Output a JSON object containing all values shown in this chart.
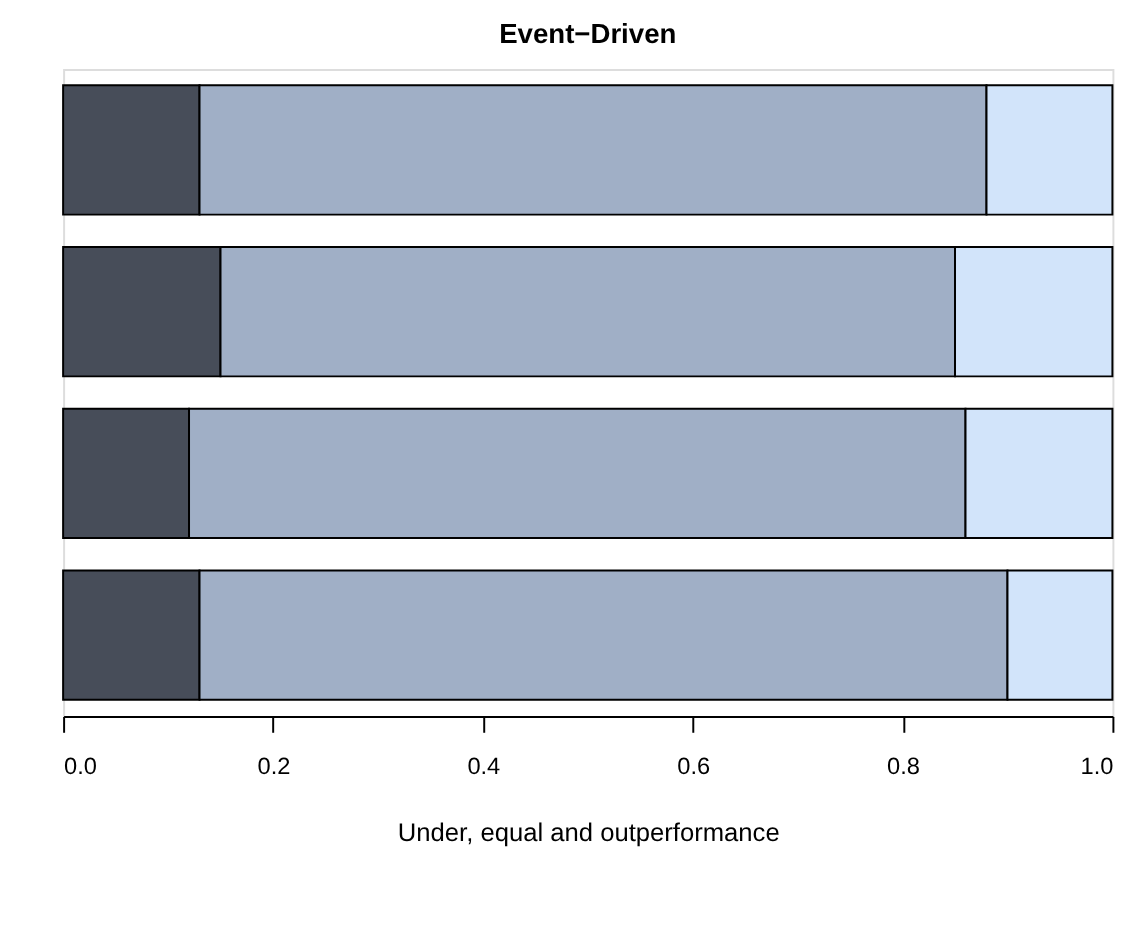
{
  "chart_data": {
    "type": "bar",
    "orientation": "horizontal",
    "stacked": true,
    "title": "Event−Driven",
    "xlabel": "Under, equal and outperformance",
    "categories": [
      null,
      null,
      null,
      null
    ],
    "series": [
      {
        "color": "#474d59",
        "values": [
          0.13,
          0.15,
          0.12,
          0.13
        ]
      },
      {
        "color": "#a0afc6",
        "values": [
          0.75,
          0.7,
          0.74,
          0.77
        ]
      },
      {
        "color": "#d2e4fa",
        "values": [
          0.12,
          0.15,
          0.14,
          0.1
        ]
      }
    ],
    "xlim": [
      0,
      1
    ],
    "xticks": [
      {
        "value": 0,
        "label": "0.0"
      },
      {
        "value": 0.2,
        "label": "0.2"
      },
      {
        "value": 0.4,
        "label": "0.4"
      },
      {
        "value": 0.6,
        "label": "0.6"
      },
      {
        "value": 0.8,
        "label": "0.8"
      },
      {
        "value": 1,
        "label": "1.0"
      }
    ],
    "grid": false,
    "legend": false
  }
}
